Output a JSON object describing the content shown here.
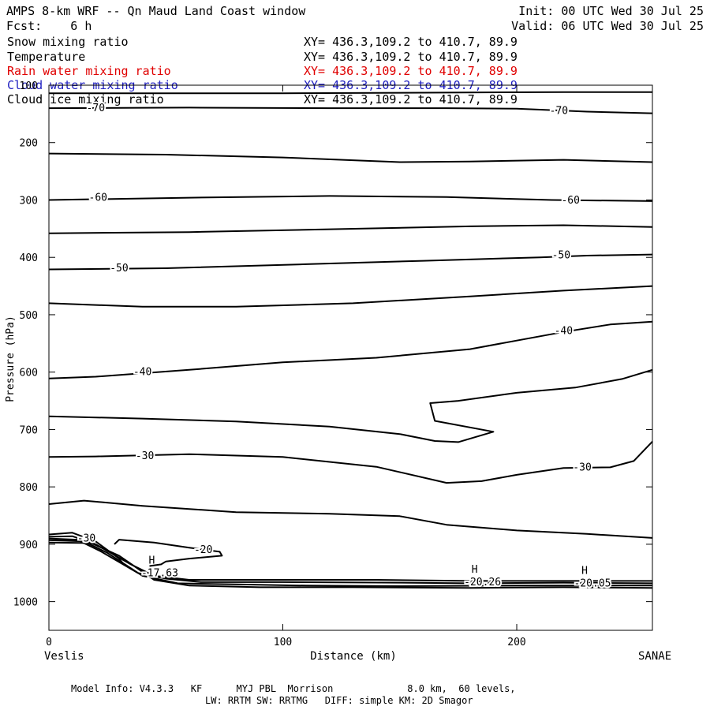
{
  "header": {
    "title": "AMPS 8-km WRF -- Qn Maud Land Coast window",
    "forecast": "Fcst:    6 h",
    "init": "Init: 00 UTC Wed 30 Jul 25",
    "valid": "Valid: 06 UTC Wed 30 Jul 25"
  },
  "legend": [
    {
      "name": "Snow mixing ratio",
      "xy": "XY= 436.3,109.2 to 410.7, 89.9",
      "color": "#000000"
    },
    {
      "name": "Temperature",
      "xy": "XY= 436.3,109.2 to 410.7, 89.9",
      "color": "#000000"
    },
    {
      "name": "Rain water mixing ratio",
      "xy": "XY= 436.3,109.2 to 410.7, 89.9",
      "color": "#e00000"
    },
    {
      "name": "Cloud water mixing ratio",
      "xy": "XY= 436.3,109.2 to 410.7, 89.9",
      "color": "#2020c0"
    },
    {
      "name": "Cloud ice mixing ratio",
      "xy": "XY= 436.3,109.2 to 410.7, 89.9",
      "color": "#000000"
    }
  ],
  "footer": {
    "line1": "Model Info: V4.3.3   KF      MYJ PBL  Morrison             8.0 km,  60 levels,",
    "line2": "LW: RRTM SW: RRTMG   DIFF: simple KM: 2D Smagor"
  },
  "chart_data": {
    "type": "line",
    "subtype": "vertical cross-section, temperature contours",
    "xlabel": "Distance (km)",
    "ylabel": "Pressure (hPa)",
    "xlim": [
      0,
      258
    ],
    "ylim": [
      1050,
      100
    ],
    "y_scale": "linear, inverted",
    "x_ticks": [
      0,
      100,
      200
    ],
    "y_ticks": [
      100,
      200,
      300,
      400,
      500,
      600,
      700,
      800,
      900,
      1000
    ],
    "x_tick_labels": [
      "0",
      "100",
      "200"
    ],
    "y_tick_labels": [
      "100",
      "200",
      "300",
      "400",
      "500",
      "600",
      "700",
      "800",
      "900",
      "1000"
    ],
    "left_endpoint_label": "Veslis",
    "right_endpoint_label": "SANAE",
    "contour_interval": 5,
    "contours": [
      {
        "level": -75,
        "points": [
          [
            0,
            114
          ],
          [
            40,
            114
          ],
          [
            100,
            114
          ],
          [
            160,
            113
          ],
          [
            220,
            112
          ],
          [
            258,
            112
          ]
        ]
      },
      {
        "level": -70,
        "points": [
          [
            0,
            140
          ],
          [
            60,
            139
          ],
          [
            120,
            140
          ],
          [
            170,
            140
          ],
          [
            200,
            141
          ],
          [
            230,
            146
          ],
          [
            258,
            149
          ]
        ]
      },
      {
        "level": -65,
        "points": [
          [
            0,
            219
          ],
          [
            50,
            221
          ],
          [
            100,
            226
          ],
          [
            150,
            234
          ],
          [
            180,
            233
          ],
          [
            220,
            230
          ],
          [
            258,
            234
          ]
        ]
      },
      {
        "level": -60,
        "points": [
          [
            0,
            300
          ],
          [
            60,
            296
          ],
          [
            120,
            293
          ],
          [
            170,
            295
          ],
          [
            215,
            300
          ],
          [
            258,
            302
          ]
        ]
      },
      {
        "level": -55,
        "points": [
          [
            0,
            358
          ],
          [
            60,
            356
          ],
          [
            120,
            351
          ],
          [
            180,
            346
          ],
          [
            220,
            344
          ],
          [
            258,
            347
          ]
        ]
      },
      {
        "level": -50,
        "points": [
          [
            0,
            421
          ],
          [
            50,
            419
          ],
          [
            110,
            412
          ],
          [
            160,
            406
          ],
          [
            210,
            400
          ],
          [
            230,
            397
          ],
          [
            258,
            395
          ]
        ]
      },
      {
        "level": -45,
        "points": [
          [
            0,
            480
          ],
          [
            40,
            486
          ],
          [
            80,
            486
          ],
          [
            130,
            480
          ],
          [
            180,
            468
          ],
          [
            220,
            458
          ],
          [
            258,
            450
          ]
        ]
      },
      {
        "level": -40,
        "points": [
          [
            0,
            611
          ],
          [
            20,
            608
          ],
          [
            60,
            596
          ],
          [
            100,
            583
          ],
          [
            140,
            575
          ],
          [
            180,
            560
          ],
          [
            220,
            530
          ],
          [
            240,
            517
          ],
          [
            258,
            512
          ]
        ]
      },
      {
        "level": -35,
        "points": [
          [
            0,
            677
          ],
          [
            40,
            681
          ],
          [
            80,
            686
          ],
          [
            120,
            695
          ],
          [
            150,
            708
          ],
          [
            165,
            720
          ],
          [
            175,
            722
          ],
          [
            190,
            704
          ],
          [
            165,
            685
          ],
          [
            163,
            654
          ],
          [
            175,
            650
          ],
          [
            200,
            636
          ],
          [
            225,
            627
          ],
          [
            245,
            612
          ],
          [
            258,
            596
          ]
        ]
      },
      {
        "level": -30,
        "points": [
          [
            0,
            748
          ],
          [
            20,
            747
          ],
          [
            60,
            743
          ],
          [
            100,
            748
          ],
          [
            140,
            765
          ],
          [
            170,
            793
          ],
          [
            185,
            790
          ],
          [
            200,
            779
          ],
          [
            220,
            767
          ],
          [
            240,
            766
          ],
          [
            250,
            755
          ],
          [
            258,
            721
          ]
        ]
      },
      {
        "level": -25,
        "points": [
          [
            0,
            830
          ],
          [
            15,
            824
          ],
          [
            40,
            833
          ],
          [
            80,
            844
          ],
          [
            120,
            847
          ],
          [
            150,
            851
          ],
          [
            170,
            866
          ],
          [
            200,
            876
          ],
          [
            230,
            882
          ],
          [
            258,
            889
          ]
        ]
      },
      {
        "level": -30,
        "points": [
          [
            0,
            883
          ],
          [
            10,
            880
          ],
          [
            20,
            895
          ],
          [
            30,
            925
          ],
          [
            32,
            935
          ]
        ]
      },
      {
        "level": -20,
        "points": [
          [
            28,
            900
          ],
          [
            30,
            892
          ],
          [
            45,
            897
          ],
          [
            60,
            906
          ],
          [
            73,
            913
          ],
          [
            74,
            920
          ],
          [
            60,
            925
          ],
          [
            50,
            930
          ],
          [
            48,
            935
          ],
          [
            43,
            938
          ]
        ]
      },
      {
        "level": -25,
        "points": [
          [
            0,
            887
          ],
          [
            10,
            886
          ],
          [
            20,
            900
          ],
          [
            35,
            935
          ],
          [
            45,
            955
          ],
          [
            60,
            962
          ],
          [
            100,
            962
          ],
          [
            140,
            962
          ],
          [
            180,
            964
          ],
          [
            220,
            964
          ],
          [
            258,
            964
          ]
        ]
      },
      {
        "level": -20,
        "points": [
          [
            0,
            890
          ],
          [
            12,
            892
          ],
          [
            22,
            912
          ],
          [
            38,
            950
          ],
          [
            50,
            960
          ],
          [
            65,
            966
          ],
          [
            100,
            966
          ],
          [
            150,
            967
          ],
          [
            180,
            968
          ],
          [
            220,
            967
          ],
          [
            258,
            968
          ]
        ]
      },
      {
        "level": -15,
        "points": [
          [
            0,
            893
          ],
          [
            15,
            895
          ],
          [
            25,
            915
          ],
          [
            40,
            955
          ],
          [
            55,
            968
          ],
          [
            80,
            970
          ],
          [
            110,
            972
          ],
          [
            150,
            973
          ],
          [
            200,
            972
          ],
          [
            258,
            972
          ]
        ]
      },
      {
        "level": -10,
        "points": [
          [
            0,
            897
          ],
          [
            18,
            898
          ],
          [
            30,
            920
          ],
          [
            45,
            962
          ],
          [
            60,
            972
          ],
          [
            90,
            975
          ],
          [
            130,
            975
          ],
          [
            180,
            976
          ],
          [
            220,
            975
          ],
          [
            258,
            976
          ]
        ]
      }
    ],
    "contour_labels": [
      {
        "text": "-70",
        "x": 20,
        "y": 140
      },
      {
        "text": "-70",
        "x": 218,
        "y": 145
      },
      {
        "text": "-60",
        "x": 21,
        "y": 296
      },
      {
        "text": "-60",
        "x": 223,
        "y": 301
      },
      {
        "text": "-50",
        "x": 30,
        "y": 419
      },
      {
        "text": "-50",
        "x": 219,
        "y": 396
      },
      {
        "text": "-40",
        "x": 40,
        "y": 600
      },
      {
        "text": "-40",
        "x": 220,
        "y": 528
      },
      {
        "text": "-30",
        "x": 41,
        "y": 746
      },
      {
        "text": "-30",
        "x": 228,
        "y": 766
      },
      {
        "text": "-30",
        "x": 16,
        "y": 890
      },
      {
        "text": "-20",
        "x": 66,
        "y": 910
      }
    ],
    "highs": [
      {
        "label": "H",
        "value": "-17.63",
        "x": 44,
        "y": 942
      },
      {
        "label": "H",
        "value": "-20.26",
        "x": 182,
        "y": 958
      },
      {
        "label": "H",
        "value": "-20.05",
        "x": 229,
        "y": 960
      }
    ]
  }
}
